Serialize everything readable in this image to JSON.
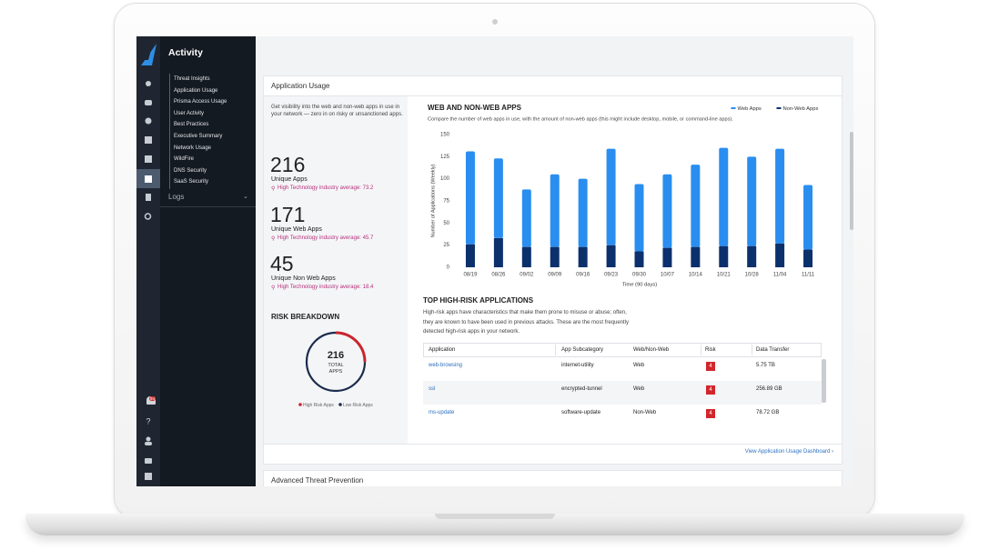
{
  "sidebar": {
    "title": "Activity",
    "menu": [
      "Threat Insights",
      "Application Usage",
      "Prisma Access Usage",
      "User Activity",
      "Best Practices",
      "Executive Summary",
      "Network Usage",
      "WildFire",
      "DNS Security",
      "SaaS Security"
    ],
    "logs": "Logs",
    "badge": "94"
  },
  "section": {
    "title": "Application Usage",
    "intro": "Get visibility into the web and non-web apps in use in your network — zero in on risky or unsanctioned apps."
  },
  "stats": [
    {
      "value": 216,
      "label": "Unique Apps",
      "average": "High Technology industry average: 73.2"
    },
    {
      "value": 171,
      "label": "Unique Web Apps",
      "average": "High Technology industry average: 45.7"
    },
    {
      "value": 45,
      "label": "Unique Non Web Apps",
      "average": "High Technology industry average: 18.4"
    }
  ],
  "chart_data": [
    {
      "type": "bar",
      "stacked": true,
      "title": "WEB AND NON-WEB APPS",
      "subtitle": "Compare the number of web apps in use, with the amount of non-web apps (this might include desktop, mobile, or command-line apps).",
      "y_label": "Number of Applications (Weekly)",
      "x_label": "Time (90 days)",
      "categories": [
        "08/19",
        "08/26",
        "09/02",
        "09/09",
        "09/16",
        "09/23",
        "09/30",
        "10/07",
        "10/14",
        "10/21",
        "10/28",
        "11/04",
        "11/11"
      ],
      "series": [
        {
          "name": "Web Apps",
          "color": "#2a8ef0",
          "values": [
            105,
            90,
            65,
            82,
            77,
            109,
            76,
            83,
            93,
            111,
            101,
            107,
            73
          ]
        },
        {
          "name": "Non-Web Apps",
          "color": "#0c306c",
          "values": [
            26,
            33,
            23,
            23,
            23,
            25,
            18,
            22,
            23,
            24,
            24,
            27,
            20
          ]
        }
      ],
      "ylim": [
        0,
        150
      ],
      "yticks": [
        0,
        25,
        50,
        75,
        100,
        125,
        150
      ],
      "grid": false,
      "legend": "top-right"
    },
    {
      "type": "donut",
      "title": "RISK BREAKDOWN",
      "total": 216,
      "center_label": "TOTAL APPS",
      "categories": [
        "High Risk Apps",
        "Low Risk Apps"
      ],
      "values": [
        54,
        162
      ],
      "colors": [
        "#c8262d",
        "#1c2c4c"
      ]
    }
  ],
  "table": {
    "title": "TOP HIGH-RISK APPLICATIONS",
    "description": "High-risk apps have characteristics that make them prone to misuse or abuse; often, they are known to have been used in previous attacks. These are the most frequently detected high-risk apps in your network.",
    "headers": [
      "Application",
      "App Subcategory",
      "Web/Non-Web",
      "Risk",
      "Data Transfer"
    ],
    "rows": [
      [
        "web-browsing",
        "internet-utility",
        "Web",
        4,
        "5.75 TB"
      ],
      [
        "ssl",
        "encrypted-tunnel",
        "Web",
        4,
        "256.89 GB"
      ],
      [
        "ms-update",
        "software-update",
        "Non-Web",
        4,
        "78.72 GB"
      ]
    ]
  },
  "link": "View Application Usage Dashboard ›",
  "next_section": "Advanced Threat Prevention"
}
